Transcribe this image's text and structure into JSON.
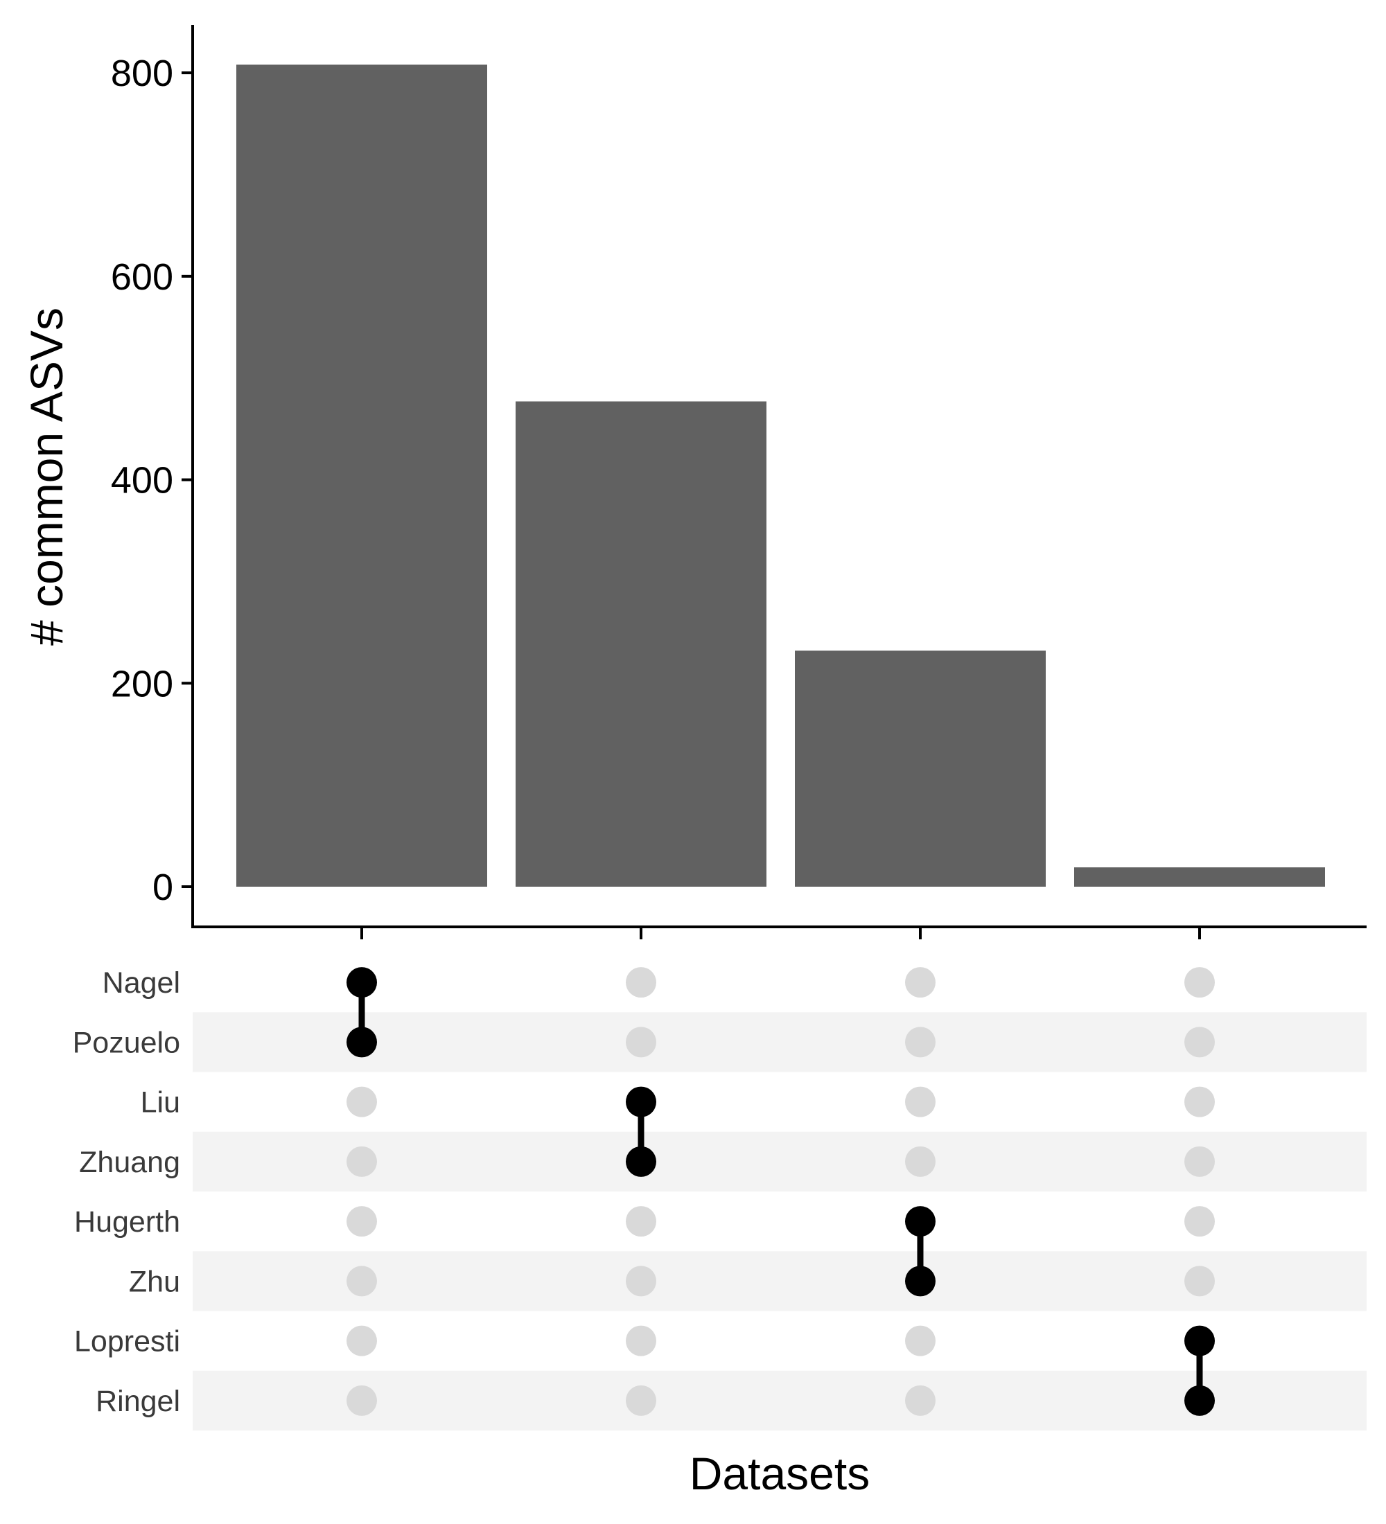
{
  "chart_data": {
    "type": "bar",
    "subtype": "upset",
    "ylabel": "# common ASVs",
    "xlabel": "Datasets",
    "ylim": [
      -40,
      850
    ],
    "yticks": [
      0,
      200,
      400,
      600,
      800
    ],
    "bar_color": "#616161",
    "bars": [
      {
        "values_sets": [
          "Nagel",
          "Pozuelo"
        ],
        "value": 808
      },
      {
        "values_sets": [
          "Liu",
          "Zhuang"
        ],
        "value": 477
      },
      {
        "values_sets": [
          "Hugerth",
          "Zhu"
        ],
        "value": 232
      },
      {
        "values_sets": [
          "Lopresti",
          "Ringel"
        ],
        "value": 19
      }
    ],
    "values": [
      808,
      477,
      232,
      19
    ],
    "sets": [
      "Nagel",
      "Pozuelo",
      "Liu",
      "Zhuang",
      "Hugerth",
      "Zhu",
      "Lopresti",
      "Ringel"
    ],
    "matrix_colors": {
      "active": "#000000",
      "inactive": "#d9d9d9",
      "stripe": "#f3f3f3"
    },
    "grid": false
  }
}
